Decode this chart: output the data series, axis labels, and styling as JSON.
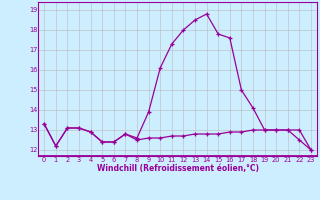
{
  "xlabel": "Windchill (Refroidissement éolien,°C)",
  "hours": [
    0,
    1,
    2,
    3,
    4,
    5,
    6,
    7,
    8,
    9,
    10,
    11,
    12,
    13,
    14,
    15,
    16,
    17,
    18,
    19,
    20,
    21,
    22,
    23
  ],
  "temp": [
    13.3,
    12.2,
    13.1,
    13.1,
    12.9,
    12.4,
    12.4,
    12.8,
    12.6,
    13.9,
    16.1,
    17.3,
    18.0,
    18.5,
    18.8,
    17.8,
    17.6,
    15.0,
    14.1,
    13.0,
    13.0,
    13.0,
    13.0,
    12.0
  ],
  "windchill": [
    13.3,
    12.2,
    13.1,
    13.1,
    12.9,
    12.4,
    12.4,
    12.8,
    12.5,
    12.6,
    12.6,
    12.7,
    12.7,
    12.8,
    12.8,
    12.8,
    12.9,
    12.9,
    13.0,
    13.0,
    13.0,
    13.0,
    12.5,
    12.0
  ],
  "line_color": "#990099",
  "bg_color": "#cceeff",
  "grid_color": "#bbbbbb",
  "ylim": [
    11.7,
    19.4
  ],
  "yticks": [
    12,
    13,
    14,
    15,
    16,
    17,
    18,
    19
  ],
  "xticks": [
    0,
    1,
    2,
    3,
    4,
    5,
    6,
    7,
    8,
    9,
    10,
    11,
    12,
    13,
    14,
    15,
    16,
    17,
    18,
    19,
    20,
    21,
    22,
    23
  ]
}
